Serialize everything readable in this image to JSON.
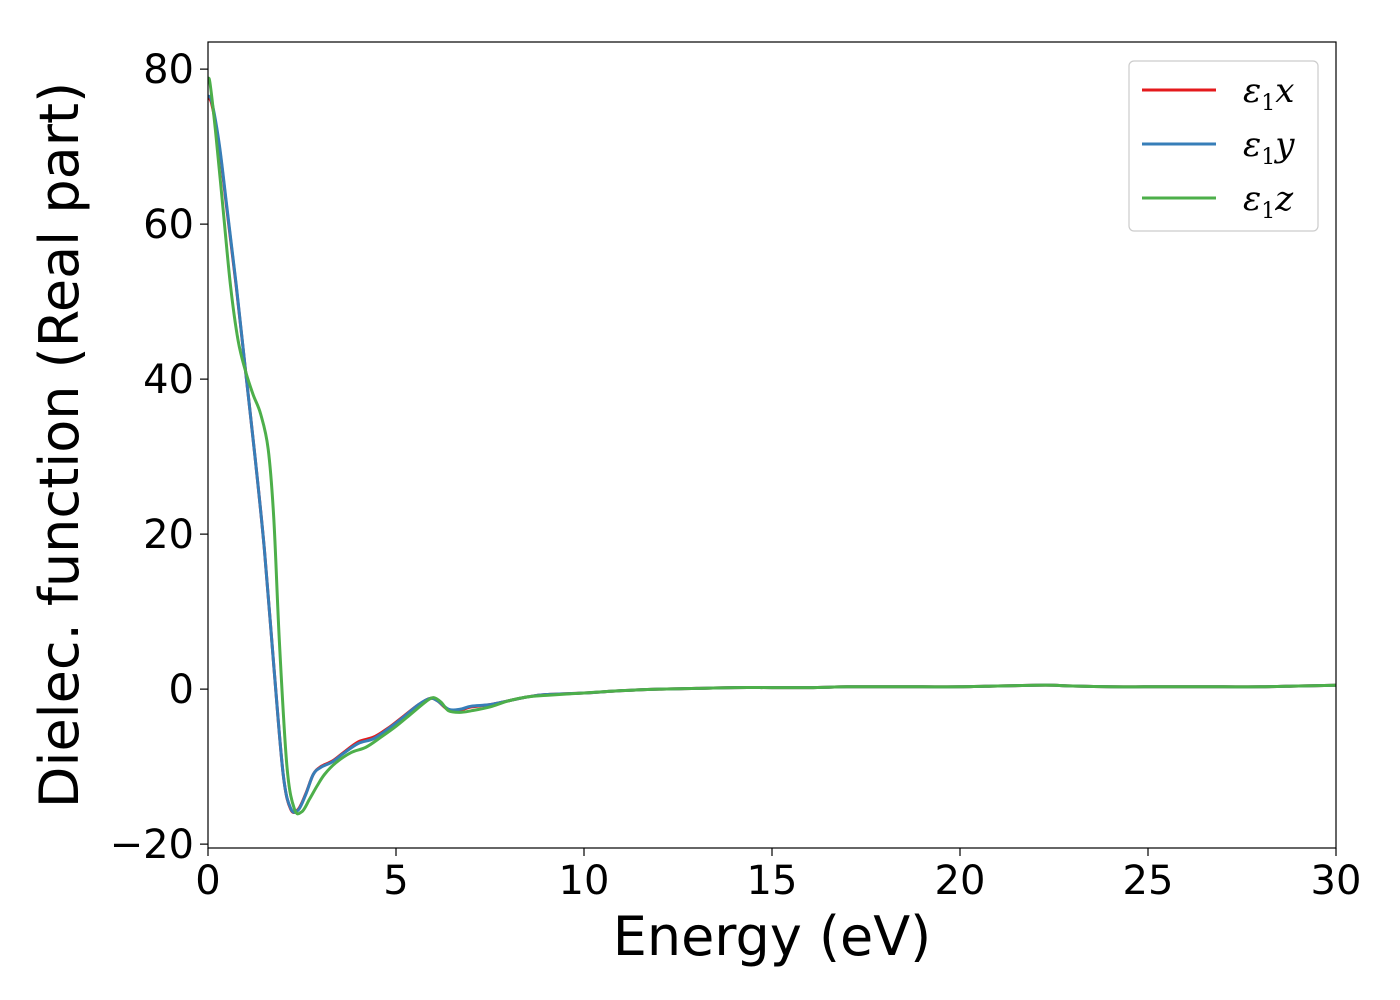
{
  "chart_data": {
    "type": "line",
    "xlabel": "Energy (eV)",
    "ylabel": "Dielec. function (Real part)",
    "xlim": [
      0,
      30
    ],
    "ylim": [
      -20.5,
      83.5
    ],
    "xticks": [
      0,
      5,
      10,
      15,
      20,
      25,
      30
    ],
    "yticks": [
      -20,
      0,
      20,
      40,
      60,
      80
    ],
    "xtick_labels": [
      "0",
      "5",
      "10",
      "15",
      "20",
      "25",
      "30"
    ],
    "ytick_labels": [
      "−20",
      "0",
      "20",
      "40",
      "60",
      "80"
    ],
    "grid": false,
    "legend_position": "top-right",
    "series": [
      {
        "name": "ε₁x",
        "legend_base": "ε",
        "legend_sub": "1",
        "legend_var": "x",
        "color": "#e41a1c",
        "x": [
          0,
          0.1,
          0.3,
          0.5,
          0.75,
          1.0,
          1.25,
          1.5,
          1.75,
          2.0,
          2.2,
          2.4,
          2.6,
          2.8,
          3.0,
          3.3,
          3.6,
          4.0,
          4.4,
          4.8,
          5.2,
          5.6,
          5.9,
          6.1,
          6.4,
          6.7,
          7.0,
          7.5,
          8.0,
          8.5,
          9.0,
          10,
          11,
          12,
          13,
          14,
          15,
          16,
          17,
          18,
          19,
          20,
          21,
          22,
          22.5,
          23,
          24,
          25,
          26,
          27,
          28,
          29,
          30
        ],
        "values": [
          76.2,
          75.5,
          70,
          62,
          52,
          41,
          30,
          18,
          3,
          -11,
          -15.5,
          -15.5,
          -13.5,
          -11,
          -10,
          -9.3,
          -8.2,
          -6.8,
          -6.2,
          -5,
          -3.5,
          -2,
          -1.2,
          -1.5,
          -2.7,
          -2.7,
          -2.3,
          -2,
          -1.5,
          -1,
          -0.7,
          -0.5,
          -0.2,
          0,
          0.1,
          0.2,
          0.2,
          0.2,
          0.3,
          0.3,
          0.3,
          0.3,
          0.4,
          0.5,
          0.5,
          0.4,
          0.3,
          0.3,
          0.3,
          0.3,
          0.3,
          0.4,
          0.5
        ]
      },
      {
        "name": "ε₁y",
        "legend_base": "ε",
        "legend_sub": "1",
        "legend_var": "y",
        "color": "#377eb8",
        "x": [
          0,
          0.1,
          0.3,
          0.5,
          0.75,
          1.0,
          1.25,
          1.5,
          1.75,
          2.0,
          2.2,
          2.4,
          2.6,
          2.8,
          3.0,
          3.3,
          3.6,
          4.0,
          4.4,
          4.8,
          5.2,
          5.6,
          5.9,
          6.1,
          6.4,
          6.7,
          7.0,
          7.5,
          8.0,
          8.5,
          9.0,
          10,
          11,
          12,
          13,
          14,
          15,
          16,
          17,
          18,
          19,
          20,
          21,
          22,
          22.5,
          23,
          24,
          25,
          26,
          27,
          28,
          29,
          30
        ],
        "values": [
          76.5,
          75.8,
          70.3,
          62.3,
          52.2,
          41,
          30,
          18,
          3,
          -11,
          -15.4,
          -15.6,
          -13.6,
          -11,
          -10.1,
          -9.4,
          -8.3,
          -7,
          -6.4,
          -5.1,
          -3.6,
          -2,
          -1.2,
          -1.5,
          -2.6,
          -2.6,
          -2.2,
          -2,
          -1.5,
          -1,
          -0.7,
          -0.5,
          -0.2,
          0,
          0.1,
          0.2,
          0.2,
          0.2,
          0.3,
          0.3,
          0.3,
          0.3,
          0.4,
          0.5,
          0.5,
          0.4,
          0.3,
          0.3,
          0.3,
          0.3,
          0.3,
          0.4,
          0.5
        ]
      },
      {
        "name": "ε₁z",
        "legend_base": "ε",
        "legend_sub": "1",
        "legend_var": "z",
        "color": "#4daf4a",
        "x": [
          0,
          0.05,
          0.2,
          0.4,
          0.6,
          0.8,
          1.0,
          1.2,
          1.4,
          1.6,
          1.75,
          1.9,
          2.1,
          2.3,
          2.5,
          2.7,
          2.9,
          3.1,
          3.4,
          3.8,
          4.2,
          4.6,
          5.0,
          5.4,
          5.8,
          6.0,
          6.2,
          6.4,
          6.7,
          7.0,
          7.5,
          8.0,
          8.5,
          9.0,
          10,
          11,
          12,
          13,
          14,
          15,
          16,
          17,
          18,
          19,
          20,
          21,
          22,
          22.5,
          23,
          24,
          25,
          26,
          27,
          28,
          29,
          30
        ],
        "values": [
          78.5,
          78.3,
          72,
          62,
          52,
          45,
          41,
          38,
          35.5,
          31,
          22,
          6,
          -10,
          -15.5,
          -15.8,
          -14.2,
          -12.5,
          -11,
          -9.5,
          -8.2,
          -7.5,
          -6.2,
          -4.8,
          -3.2,
          -1.6,
          -1.1,
          -1.7,
          -2.8,
          -3,
          -2.8,
          -2.3,
          -1.5,
          -1,
          -0.8,
          -0.5,
          -0.2,
          0,
          0.1,
          0.2,
          0.2,
          0.2,
          0.3,
          0.3,
          0.3,
          0.3,
          0.4,
          0.5,
          0.5,
          0.4,
          0.3,
          0.3,
          0.3,
          0.3,
          0.3,
          0.4,
          0.5
        ]
      }
    ]
  }
}
